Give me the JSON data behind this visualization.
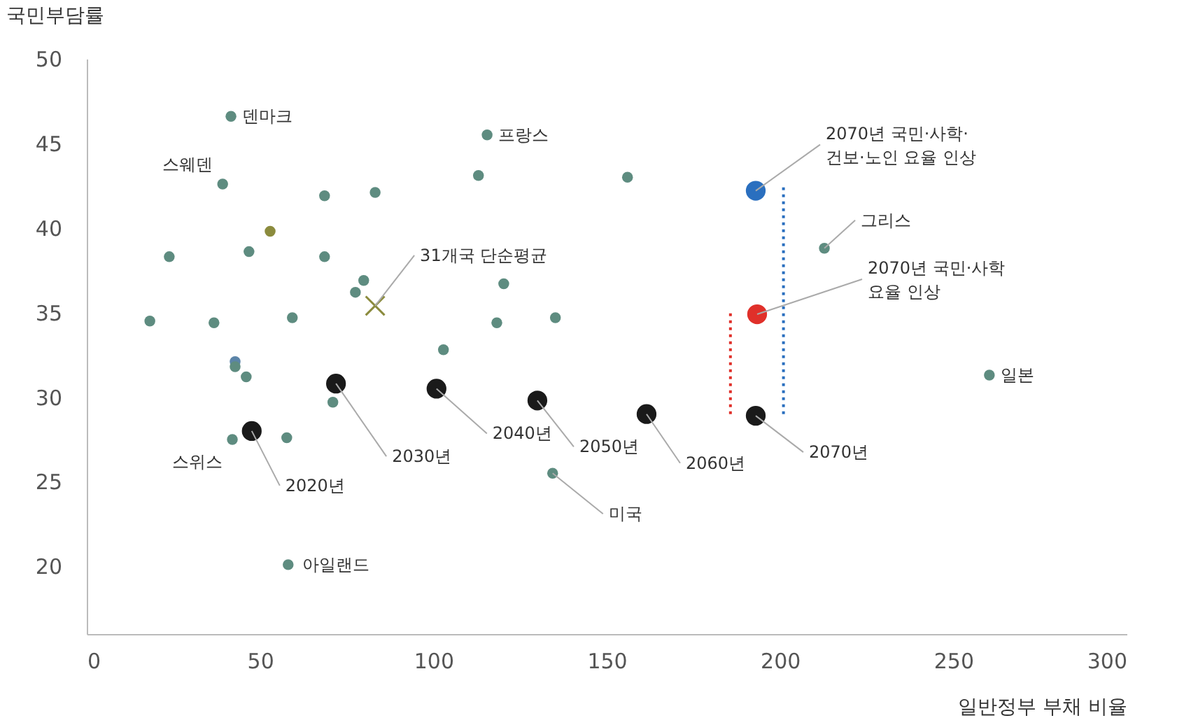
{
  "chart_data": {
    "type": "scatter",
    "xlabel": "일반정부 부채 비율",
    "ylabel": "국민부담률",
    "xlim": [
      0,
      300
    ],
    "xticks": [
      0,
      50,
      100,
      150,
      200,
      250,
      300
    ],
    "ylim": [
      16,
      50
    ],
    "yticks": [
      20,
      25,
      30,
      35,
      40,
      45,
      50
    ],
    "grid": false,
    "series": [
      {
        "marker": "circle",
        "colors": [
          "#5e8c80",
          "#5e8c80",
          "#5e8c80",
          "#5e8c80",
          "#5e8c80",
          "#5e8c80",
          "#5e8c80",
          "#8b8b3d",
          "#5e8c80",
          "#5e8c80",
          "#5e8c80",
          "#5e8c80",
          "#5e8c80",
          "#5e8c80",
          "#5e8c80",
          "#5e8c80",
          "#5e8c80",
          "#5e8c80",
          "#5e8c80",
          "#5e8c80",
          "#5b84a8",
          "#5e8c80",
          "#5e8c80",
          "#5e8c80",
          "#5e8c80",
          "#5e8c80",
          "#5e8c80",
          "#5e8c80",
          "#5e8c80",
          "#5e8c80"
        ],
        "x": [
          41.6,
          39.2,
          115.5,
          113,
          156,
          68.6,
          83.2,
          52.9,
          23.8,
          46.8,
          68.6,
          79.9,
          77.5,
          120.3,
          18.2,
          36.7,
          59.3,
          118.3,
          135.2,
          102.9,
          42.8,
          42.8,
          46,
          71,
          42,
          57.7,
          134.4,
          58.1,
          212.8,
          260.4
        ],
        "values": [
          46.6,
          42.6,
          45.5,
          43.1,
          43,
          41.9,
          42.1,
          39.8,
          38.3,
          38.6,
          38.3,
          36.9,
          36.2,
          36.7,
          34.5,
          34.4,
          34.7,
          34.4,
          34.7,
          32.8,
          32.1,
          31.8,
          31.2,
          29.7,
          27.5,
          27.6,
          25.5,
          20.1,
          38.8,
          31.3
        ]
      },
      {
        "marker": "circle",
        "color": "#1a1a1a",
        "x": [
          47.6,
          71.9,
          100.9,
          130,
          161.5,
          193
        ],
        "values": [
          28,
          30.8,
          30.5,
          29.8,
          29,
          28.9
        ]
      },
      {
        "marker": "circle",
        "color": "#e0302a",
        "x": [
          193.4
        ],
        "values": [
          34.9
        ]
      },
      {
        "marker": "circle",
        "color": "#2a6fbf",
        "x": [
          193
        ],
        "values": [
          42.2
        ]
      },
      {
        "marker": "cross",
        "color": "#8b8b3d",
        "x": [
          83.2
        ],
        "values": [
          35.4
        ]
      },
      {
        "type": "line",
        "line_style": "dotted",
        "color": "#e0302a",
        "x": [
          185.7,
          185.7
        ],
        "values": [
          29,
          35
        ]
      },
      {
        "type": "line",
        "line_style": "dotted",
        "color": "#2a6fbf",
        "x": [
          201,
          201
        ],
        "values": [
          29,
          42.5
        ]
      }
    ],
    "annotations": [
      {
        "text": "덴마크",
        "x": 41.6,
        "y": 46.6
      },
      {
        "text": "스웨덴",
        "x": 39.2,
        "y": 42.6
      },
      {
        "text": "프랑스",
        "x": 115.5,
        "y": 45.5
      },
      {
        "text": "그리스",
        "x": 212.8,
        "y": 38.8
      },
      {
        "text": "일본",
        "x": 260.4,
        "y": 31.3
      },
      {
        "text": "미국",
        "x": 134.4,
        "y": 25.5
      },
      {
        "text": "아일랜드",
        "x": 58.1,
        "y": 20.1
      },
      {
        "text": "스위스",
        "x": 42,
        "y": 27.5
      },
      {
        "text": "31개국 단순평균",
        "x": 83.2,
        "y": 35.4
      },
      {
        "text": "2020년",
        "x": 47.6,
        "y": 28
      },
      {
        "text": "2030년",
        "x": 71.9,
        "y": 30.8
      },
      {
        "text": "2040년",
        "x": 100.9,
        "y": 30.5
      },
      {
        "text": "2050년",
        "x": 130,
        "y": 29.8
      },
      {
        "text": "2060년",
        "x": 161.5,
        "y": 29
      },
      {
        "text": "2070년",
        "x": 193,
        "y": 28.9
      },
      {
        "text": "2070년 국민·사학·\n건보·노인 요율 인상",
        "x": 193,
        "y": 42.2
      },
      {
        "text": "2070년 국민·사학\n요율 인상",
        "x": 193.4,
        "y": 34.9
      }
    ]
  }
}
